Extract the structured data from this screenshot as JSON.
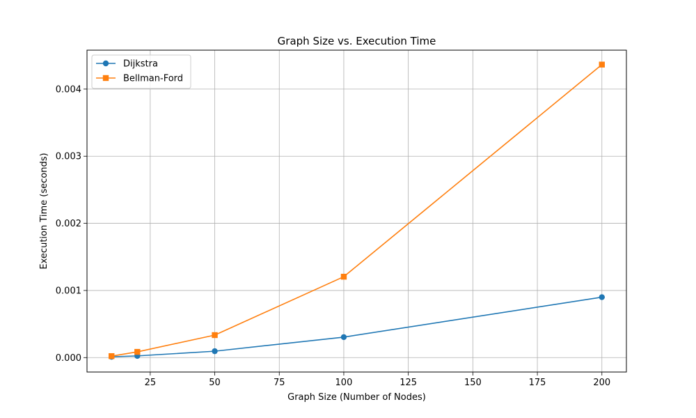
{
  "chart_data": {
    "type": "line",
    "title": "Graph Size vs. Execution Time",
    "xlabel": "Graph Size (Number of Nodes)",
    "ylabel": "Execution Time (seconds)",
    "x": [
      10,
      20,
      50,
      100,
      200
    ],
    "xlim": [
      0.5,
      209.5
    ],
    "ylim": [
      -0.000215,
      0.00458
    ],
    "xticks": [
      25,
      50,
      75,
      100,
      125,
      150,
      175,
      200
    ],
    "xtick_labels": [
      "25",
      "50",
      "75",
      "100",
      "125",
      "150",
      "175",
      "200"
    ],
    "yticks": [
      0.0,
      0.001,
      0.002,
      0.003,
      0.004
    ],
    "ytick_labels": [
      "0.000",
      "0.001",
      "0.002",
      "0.003",
      "0.004"
    ],
    "grid": true,
    "legend_position": "top-left",
    "series": [
      {
        "name": "Dijkstra",
        "color": "#1f77b4",
        "marker": "circle",
        "values": [
          1.2e-05,
          2.5e-05,
          9.5e-05,
          0.000305,
          0.0009
        ]
      },
      {
        "name": "Bellman-Ford",
        "color": "#ff7f0e",
        "marker": "square",
        "values": [
          2.2e-05,
          8.5e-05,
          0.000335,
          0.001205,
          0.004365
        ]
      }
    ]
  }
}
